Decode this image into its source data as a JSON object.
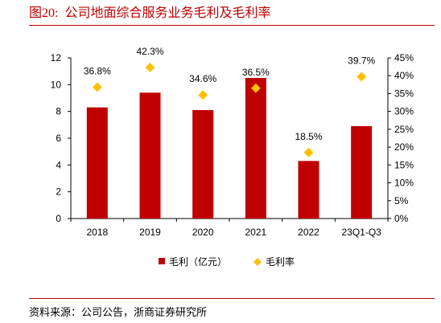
{
  "figure": {
    "number": "图20:",
    "title": "公司地面综合服务业务毛利及毛利率"
  },
  "source": "资料来源：公司公告，浙商证券研究所",
  "chart_data": {
    "type": "bar",
    "categories": [
      "2018",
      "2019",
      "2020",
      "2021",
      "2022",
      "23Q1-Q3"
    ],
    "series": [
      {
        "name": "毛利（亿元）",
        "type": "bar",
        "axis": "left",
        "color": "#c00000",
        "values": [
          8.3,
          9.4,
          8.1,
          10.5,
          4.3,
          6.9
        ]
      },
      {
        "name": "毛利率",
        "type": "scatter",
        "axis": "right",
        "marker": "diamond",
        "color": "#ffc000",
        "values": [
          36.8,
          42.3,
          34.6,
          36.5,
          18.5,
          39.7
        ],
        "labels": [
          "36.8%",
          "42.3%",
          "34.6%",
          "36.5%",
          "18.5%",
          "39.7%"
        ]
      }
    ],
    "y_left": {
      "lim": [
        0,
        12
      ],
      "ticks": [
        "0",
        "2",
        "4",
        "6",
        "8",
        "10",
        "12"
      ]
    },
    "y_right": {
      "lim": [
        0,
        45
      ],
      "ticks": [
        "0%",
        "5%",
        "10%",
        "15%",
        "20%",
        "25%",
        "30%",
        "35%",
        "40%",
        "45%"
      ]
    },
    "grid": false,
    "legend": "bottom"
  }
}
